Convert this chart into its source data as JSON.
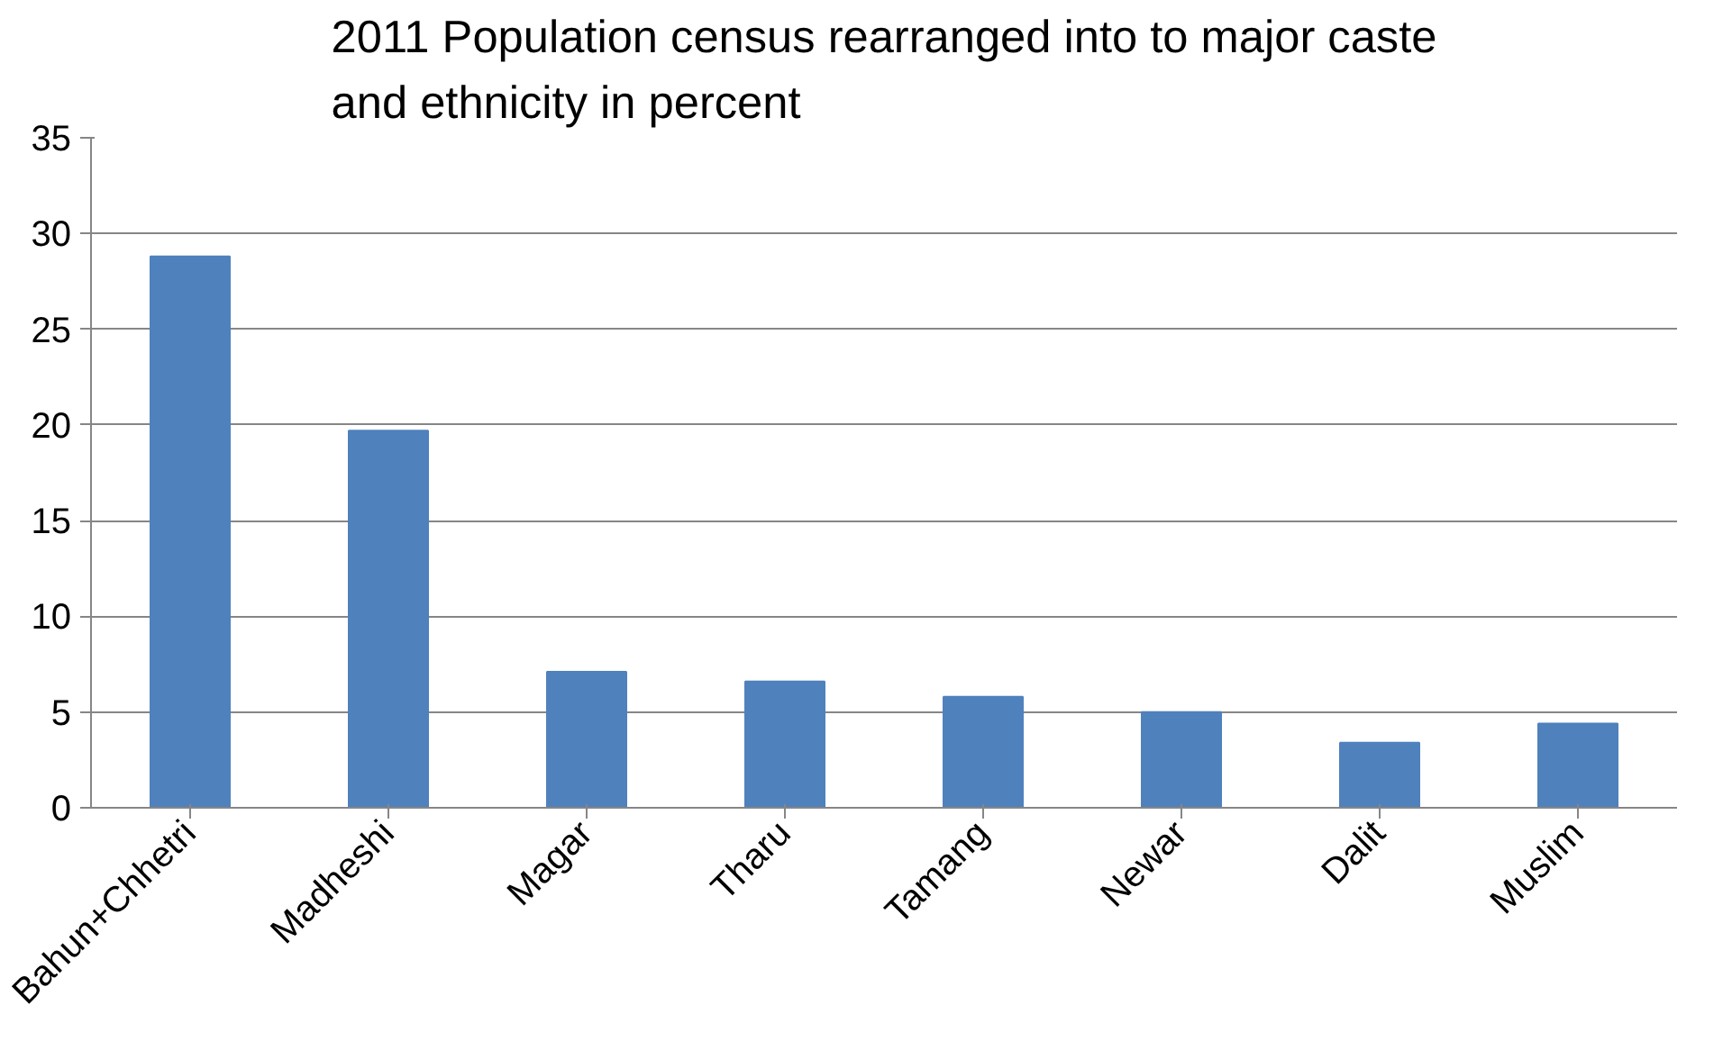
{
  "chart_data": {
    "type": "bar",
    "title": "2011 Population census rearranged into to major caste\nand ethnicity in percent",
    "categories": [
      "Bahun+Chhetri",
      "Madheshi",
      "Magar",
      "Tharu",
      "Tamang",
      "Newar",
      "Dalit",
      "Muslim"
    ],
    "values": [
      28.8,
      19.7,
      7.1,
      6.6,
      5.8,
      5.0,
      3.4,
      4.4
    ],
    "color": "#4f81bd",
    "ylim": [
      0,
      35
    ],
    "yticks": [
      0,
      5,
      10,
      15,
      20,
      25,
      30,
      35
    ],
    "grid": "y"
  }
}
